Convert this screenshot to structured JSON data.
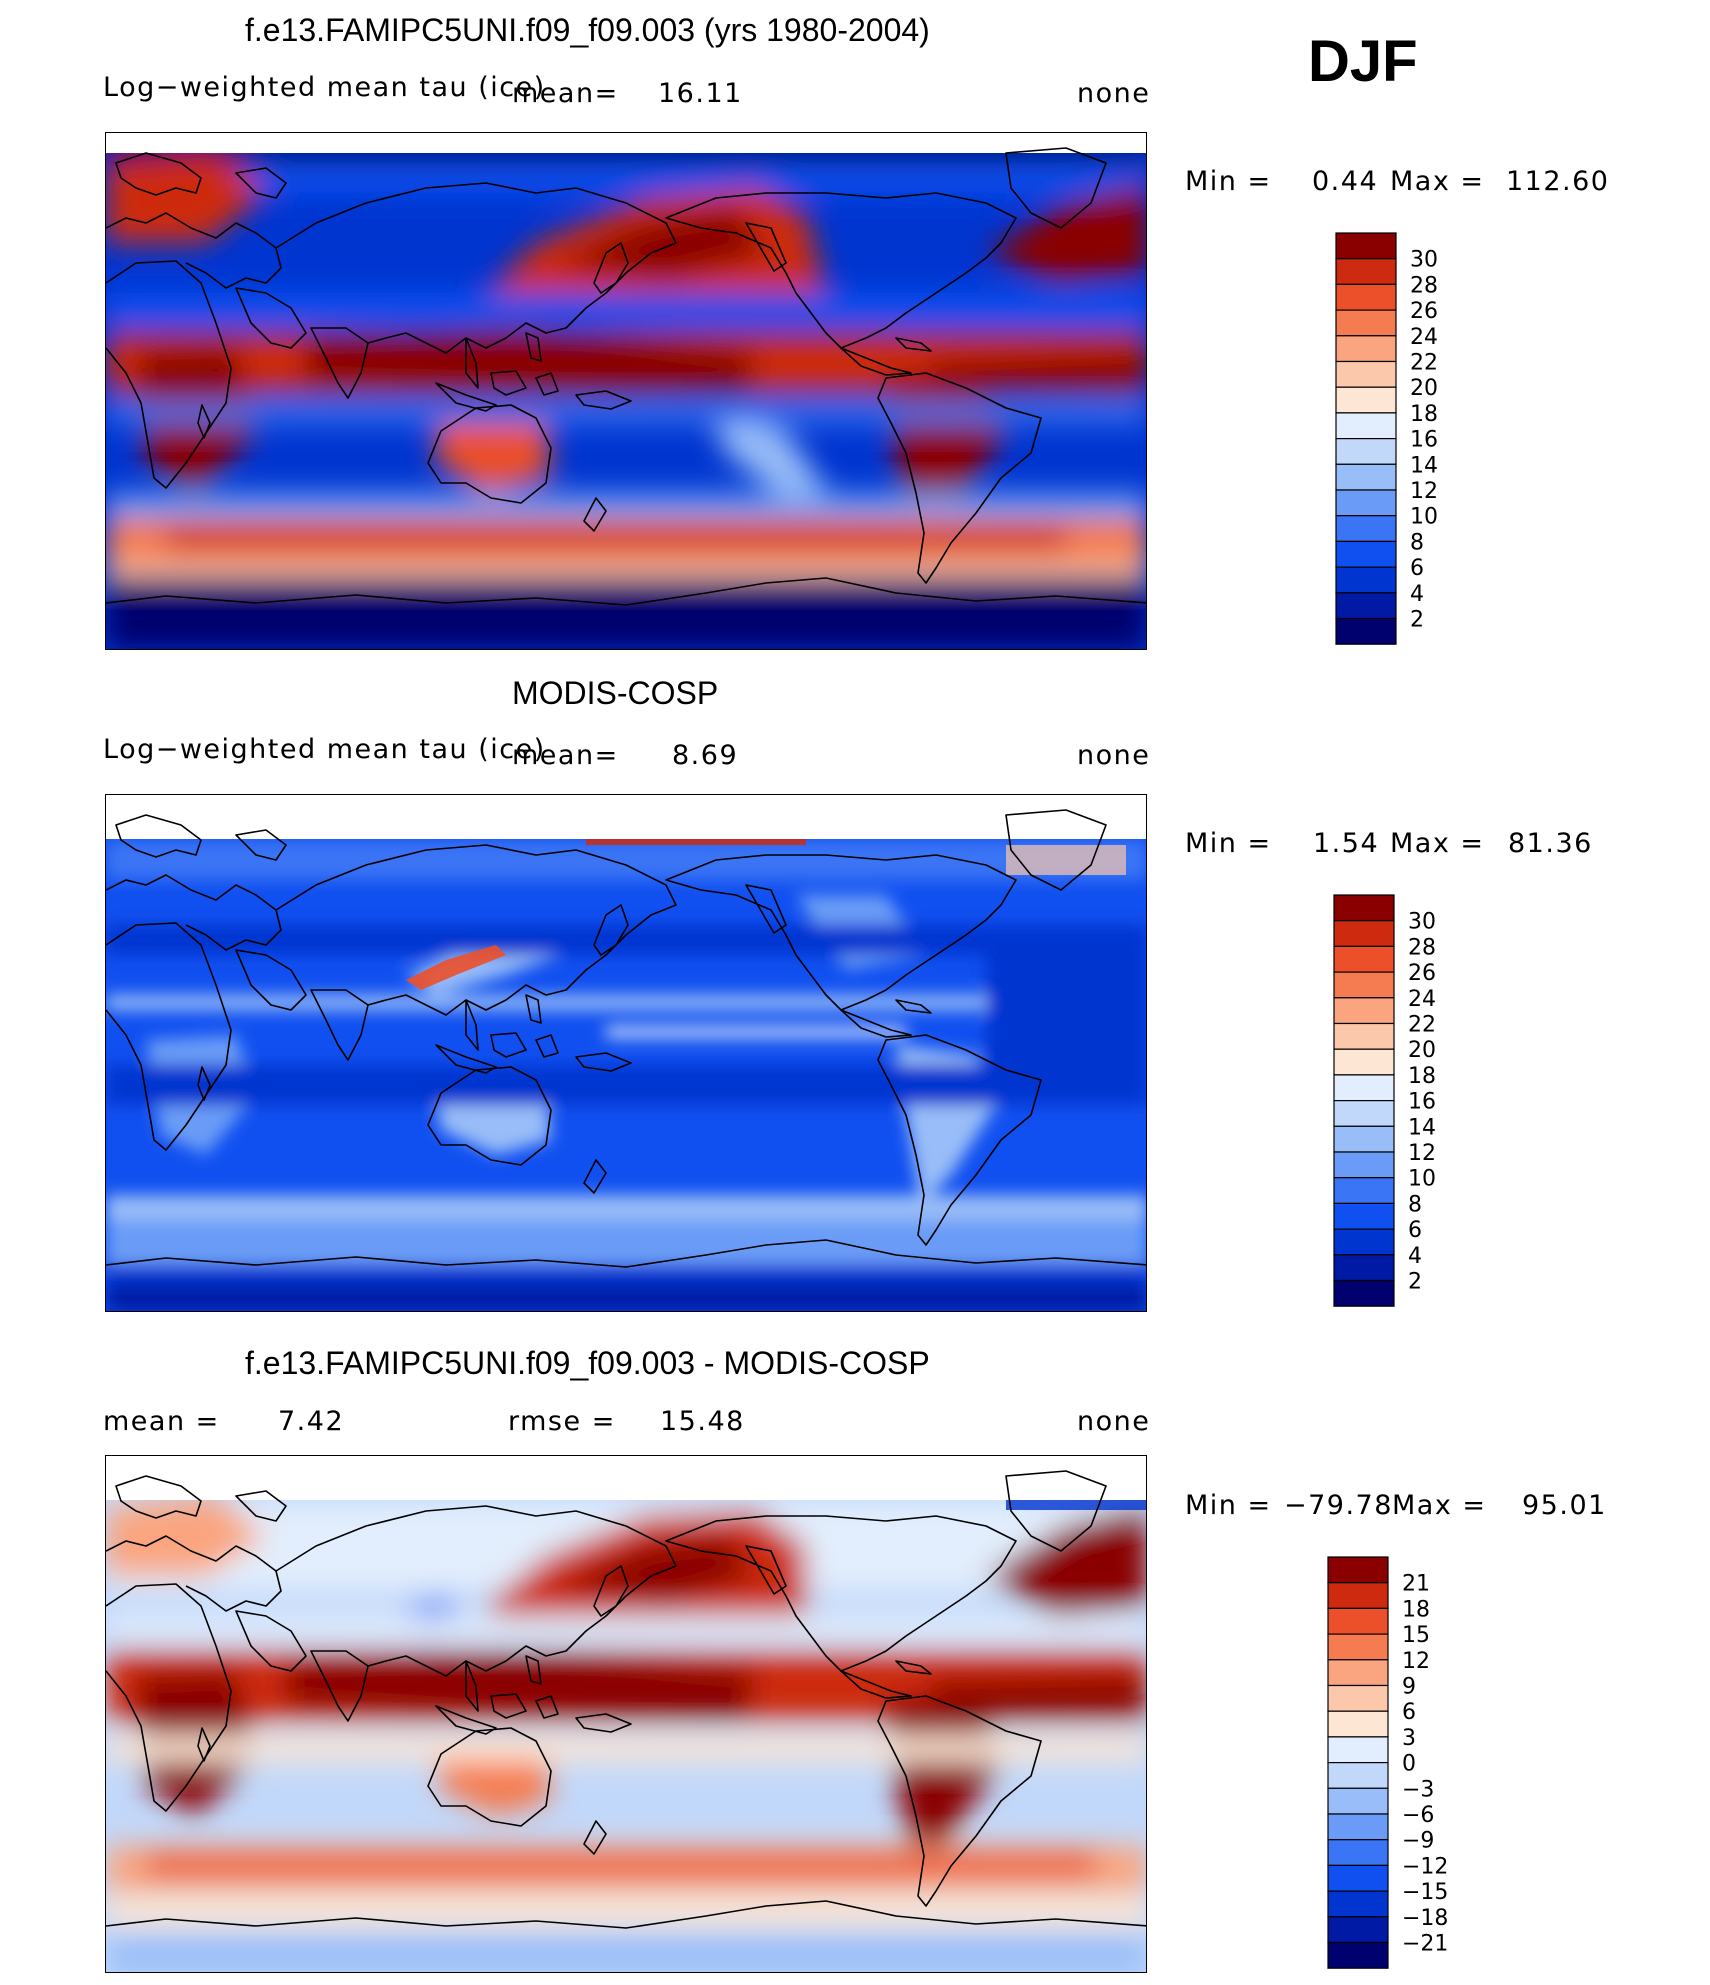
{
  "season": "DJF",
  "colors": {
    "scale": [
      "#00006e",
      "#001aa6",
      "#0035d0",
      "#1150f0",
      "#3a75f5",
      "#6a9cf7",
      "#99bdf8",
      "#c2d8fa",
      "#e2eefd",
      "#fde6d4",
      "#fcc8ab",
      "#faa57f",
      "#f57b50",
      "#eb502a",
      "#cd2a10",
      "#8a0000"
    ],
    "coastline": "#000000"
  },
  "panels": [
    {
      "title": "f.e13.FAMIPC5UNI.f09_f09.003 (yrs 1980-2004)",
      "variable": "Log−weighted mean tau (ice)",
      "mean_label": "mean=",
      "mean_value": "16.11",
      "units": "none",
      "min_label": "Min =",
      "min_value": "0.44",
      "max_label": "Max =",
      "max_value": "112.60",
      "colorbar_labels": [
        "30",
        "28",
        "26",
        "24",
        "22",
        "20",
        "18",
        "16",
        "14",
        "12",
        "10",
        "8",
        "6",
        "4",
        "2"
      ]
    },
    {
      "title": "MODIS-COSP",
      "variable": "Log−weighted mean tau (ice)",
      "mean_label": "mean=",
      "mean_value": "8.69",
      "units": "none",
      "min_label": "Min =",
      "min_value": "1.54",
      "max_label": "Max =",
      "max_value": "81.36",
      "colorbar_labels": [
        "30",
        "28",
        "26",
        "24",
        "22",
        "20",
        "18",
        "16",
        "14",
        "12",
        "10",
        "8",
        "6",
        "4",
        "2"
      ]
    },
    {
      "title": "f.e13.FAMIPC5UNI.f09_f09.003 - MODIS-COSP",
      "mean_label": "mean =",
      "mean_value": "7.42",
      "rmse_label": "rmse =",
      "rmse_value": "15.48",
      "units": "none",
      "min_label": "Min =",
      "min_value": "−79.78",
      "max_label": "Max =",
      "max_value": "95.01",
      "colorbar_labels": [
        "21",
        "18",
        "15",
        "12",
        "9",
        "6",
        "3",
        "0",
        "−3",
        "−6",
        "−9",
        "−12",
        "−15",
        "−18",
        "−21"
      ]
    }
  ]
}
